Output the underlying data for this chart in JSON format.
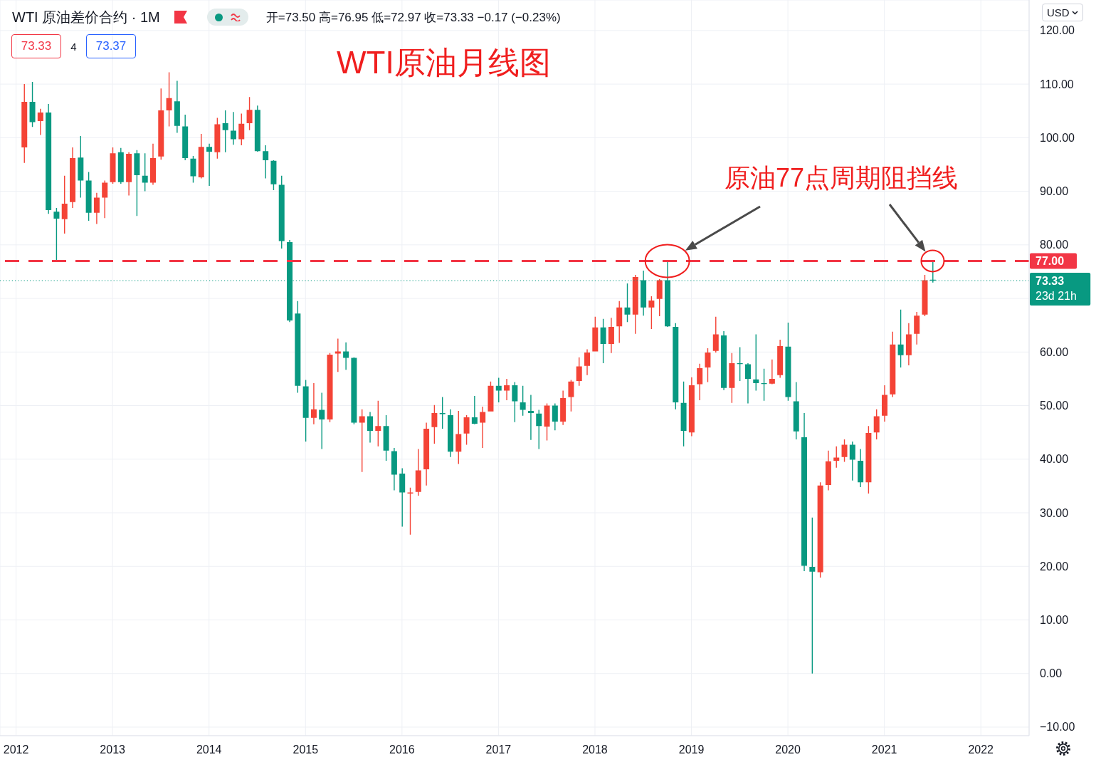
{
  "chart_data": {
    "type": "candlestick",
    "title": "WTI原油月线图",
    "subtitle": "WTI 原油差价合约 · 1M",
    "x": [
      "2012-02",
      "2012-03",
      "2012-04",
      "2012-05",
      "2012-06",
      "2012-07",
      "2012-08",
      "2012-09",
      "2012-10",
      "2012-11",
      "2012-12",
      "2013-01",
      "2013-02",
      "2013-03",
      "2013-04",
      "2013-05",
      "2013-06",
      "2013-07",
      "2013-08",
      "2013-09",
      "2013-10",
      "2013-11",
      "2013-12",
      "2014-01",
      "2014-02",
      "2014-03",
      "2014-04",
      "2014-05",
      "2014-06",
      "2014-07",
      "2014-08",
      "2014-09",
      "2014-10",
      "2014-11",
      "2014-12",
      "2015-01",
      "2015-02",
      "2015-03",
      "2015-04",
      "2015-05",
      "2015-06",
      "2015-07",
      "2015-08",
      "2015-09",
      "2015-10",
      "2015-11",
      "2015-12",
      "2016-01",
      "2016-02",
      "2016-03",
      "2016-04",
      "2016-05",
      "2016-06",
      "2016-07",
      "2016-08",
      "2016-09",
      "2016-10",
      "2016-11",
      "2016-12",
      "2017-01",
      "2017-02",
      "2017-03",
      "2017-04",
      "2017-05",
      "2017-06",
      "2017-07",
      "2017-08",
      "2017-09",
      "2017-10",
      "2017-11",
      "2017-12",
      "2018-01",
      "2018-02",
      "2018-03",
      "2018-04",
      "2018-05",
      "2018-06",
      "2018-07",
      "2018-08",
      "2018-09",
      "2018-10",
      "2018-11",
      "2018-12",
      "2019-01",
      "2019-02",
      "2019-03",
      "2019-04",
      "2019-05",
      "2019-06",
      "2019-07",
      "2019-08",
      "2019-09",
      "2019-10",
      "2019-11",
      "2019-12",
      "2020-01",
      "2020-02",
      "2020-03",
      "2020-04",
      "2020-05",
      "2020-06",
      "2020-07",
      "2020-08",
      "2020-09",
      "2020-10",
      "2020-11",
      "2020-12",
      "2021-01",
      "2021-02",
      "2021-03",
      "2021-04",
      "2021-05",
      "2021-06",
      "2021-07"
    ],
    "ohlc": [
      [
        98.2,
        110.0,
        95.3,
        106.7
      ],
      [
        106.7,
        110.4,
        102.0,
        102.9
      ],
      [
        103.1,
        105.4,
        100.5,
        104.7
      ],
      [
        104.7,
        106.3,
        85.8,
        86.5
      ],
      [
        86.2,
        86.9,
        77.1,
        84.9
      ],
      [
        84.8,
        92.9,
        82.1,
        87.7
      ],
      [
        88.0,
        98.2,
        86.9,
        96.2
      ],
      [
        96.3,
        100.3,
        88.8,
        92.0
      ],
      [
        92.0,
        93.6,
        84.5,
        86.0
      ],
      [
        86.0,
        89.7,
        83.9,
        88.8
      ],
      [
        88.8,
        92.0,
        85.0,
        91.6
      ],
      [
        91.7,
        98.2,
        91.4,
        97.1
      ],
      [
        97.3,
        98.1,
        91.4,
        91.7
      ],
      [
        91.7,
        97.3,
        89.2,
        97.0
      ],
      [
        97.1,
        97.7,
        85.4,
        93.0
      ],
      [
        92.9,
        97.1,
        90.0,
        91.6
      ],
      [
        91.6,
        98.9,
        91.2,
        96.2
      ],
      [
        96.5,
        109.2,
        95.9,
        105.1
      ],
      [
        105.1,
        112.2,
        102.1,
        107.4
      ],
      [
        106.8,
        110.6,
        100.9,
        102.2
      ],
      [
        102.1,
        104.3,
        95.8,
        96.2
      ],
      [
        96.1,
        96.6,
        91.6,
        92.8
      ],
      [
        92.6,
        100.7,
        92.4,
        98.3
      ],
      [
        98.3,
        98.9,
        91.0,
        97.4
      ],
      [
        97.3,
        103.7,
        96.1,
        102.5
      ],
      [
        102.7,
        105.1,
        97.3,
        101.4
      ],
      [
        101.3,
        104.8,
        98.7,
        99.7
      ],
      [
        99.7,
        104.5,
        98.6,
        102.6
      ],
      [
        102.7,
        107.6,
        101.4,
        105.2
      ],
      [
        105.2,
        106.0,
        97.4,
        97.5
      ],
      [
        97.5,
        98.6,
        92.4,
        95.8
      ],
      [
        95.7,
        95.8,
        90.2,
        91.3
      ],
      [
        91.2,
        92.9,
        79.3,
        80.7
      ],
      [
        80.5,
        80.9,
        65.6,
        65.9
      ],
      [
        67.2,
        69.5,
        52.4,
        53.7
      ],
      [
        53.6,
        54.8,
        43.3,
        47.7
      ],
      [
        47.7,
        54.2,
        46.5,
        49.3
      ],
      [
        49.2,
        52.4,
        41.9,
        47.4
      ],
      [
        47.4,
        59.8,
        46.9,
        59.5
      ],
      [
        59.7,
        62.5,
        56.3,
        60.1
      ],
      [
        60.1,
        61.8,
        56.7,
        58.9
      ],
      [
        58.9,
        59.0,
        46.5,
        46.8
      ],
      [
        46.8,
        49.3,
        37.6,
        48.0
      ],
      [
        48.0,
        48.8,
        43.1,
        45.3
      ],
      [
        45.3,
        50.9,
        42.4,
        46.2
      ],
      [
        46.2,
        48.2,
        39.7,
        41.6
      ],
      [
        41.5,
        42.1,
        34.2,
        37.1
      ],
      [
        37.3,
        38.3,
        27.4,
        33.8
      ],
      [
        33.6,
        34.7,
        25.9,
        33.8
      ],
      [
        33.9,
        41.9,
        33.2,
        37.9
      ],
      [
        38.1,
        46.8,
        35.1,
        45.7
      ],
      [
        46.0,
        50.1,
        42.9,
        48.6
      ],
      [
        48.6,
        51.6,
        45.7,
        48.4
      ],
      [
        48.2,
        49.3,
        40.4,
        41.4
      ],
      [
        41.4,
        49.0,
        39.1,
        44.7
      ],
      [
        44.8,
        48.2,
        42.7,
        47.8
      ],
      [
        47.8,
        51.8,
        46.5,
        46.6
      ],
      [
        46.8,
        49.8,
        42.1,
        48.8
      ],
      [
        48.9,
        54.5,
        48.9,
        53.7
      ],
      [
        53.7,
        55.2,
        50.6,
        52.8
      ],
      [
        52.8,
        55.0,
        51.0,
        53.8
      ],
      [
        53.8,
        54.4,
        46.9,
        50.8
      ],
      [
        50.6,
        53.7,
        48.1,
        49.2
      ],
      [
        49.0,
        52.0,
        43.6,
        48.6
      ],
      [
        48.5,
        49.2,
        41.9,
        46.2
      ],
      [
        46.1,
        50.4,
        43.5,
        50.0
      ],
      [
        50.0,
        50.4,
        45.4,
        47.0
      ],
      [
        47.0,
        52.8,
        46.4,
        51.4
      ],
      [
        51.6,
        54.8,
        48.9,
        54.5
      ],
      [
        54.6,
        59.0,
        53.7,
        57.3
      ],
      [
        57.4,
        60.5,
        55.7,
        59.9
      ],
      [
        60.1,
        66.6,
        60.1,
        64.6
      ],
      [
        64.6,
        66.2,
        57.9,
        61.5
      ],
      [
        61.5,
        66.4,
        59.8,
        64.7
      ],
      [
        64.8,
        69.5,
        61.7,
        68.3
      ],
      [
        68.3,
        72.8,
        65.6,
        67.0
      ],
      [
        67.0,
        74.4,
        63.4,
        74.0
      ],
      [
        73.4,
        75.2,
        66.8,
        68.3
      ],
      [
        68.3,
        70.4,
        64.3,
        69.6
      ],
      [
        69.9,
        73.6,
        66.7,
        73.4
      ],
      [
        73.4,
        76.9,
        64.7,
        64.8
      ],
      [
        64.7,
        65.4,
        49.3,
        50.6
      ],
      [
        50.5,
        54.5,
        42.4,
        45.3
      ],
      [
        45.0,
        55.3,
        44.3,
        53.8
      ],
      [
        54.0,
        57.8,
        51.0,
        57.0
      ],
      [
        57.1,
        60.7,
        54.4,
        59.9
      ],
      [
        60.2,
        66.6,
        59.9,
        63.3
      ],
      [
        63.1,
        63.9,
        52.9,
        53.3
      ],
      [
        53.3,
        59.8,
        50.5,
        57.9
      ],
      [
        57.9,
        60.9,
        54.6,
        57.8
      ],
      [
        57.7,
        57.9,
        50.4,
        55.0
      ],
      [
        54.9,
        63.3,
        52.8,
        54.2
      ],
      [
        54.2,
        56.9,
        50.9,
        54.1
      ],
      [
        54.1,
        58.6,
        54.0,
        55.0
      ],
      [
        55.7,
        62.3,
        55.2,
        61.1
      ],
      [
        61.0,
        65.5,
        50.9,
        51.6
      ],
      [
        50.8,
        54.4,
        43.7,
        45.2
      ],
      [
        44.1,
        48.6,
        19.1,
        20.1
      ],
      [
        19.9,
        29.1,
        0,
        19.0
      ],
      [
        18.9,
        35.7,
        17.9,
        35.1
      ],
      [
        35.2,
        41.6,
        34.2,
        39.6
      ],
      [
        39.7,
        42.4,
        38.4,
        40.3
      ],
      [
        40.4,
        43.7,
        39.5,
        42.7
      ],
      [
        42.7,
        43.3,
        36.0,
        39.9
      ],
      [
        39.7,
        41.9,
        34.8,
        35.7
      ],
      [
        35.7,
        46.2,
        33.6,
        44.9
      ],
      [
        45.0,
        49.3,
        43.7,
        48.0
      ],
      [
        48.1,
        53.8,
        47.0,
        52.0
      ],
      [
        52.1,
        63.8,
        51.6,
        61.4
      ],
      [
        61.4,
        67.9,
        57.1,
        59.4
      ],
      [
        59.4,
        65.4,
        57.5,
        63.3
      ],
      [
        63.4,
        67.5,
        61.4,
        66.8
      ],
      [
        67.0,
        74.4,
        66.7,
        73.4
      ],
      [
        73.5,
        76.95,
        72.97,
        73.33
      ]
    ],
    "colors": [
      "#f44336",
      "#089981",
      "#f44336",
      "#089981",
      "#089981",
      "#f44336",
      "#f44336",
      "#089981",
      "#089981",
      "#f44336",
      "#f44336",
      "#f44336",
      "#089981",
      "#f44336",
      "#089981",
      "#089981",
      "#f44336",
      "#f44336",
      "#f44336",
      "#089981",
      "#089981",
      "#089981",
      "#f44336",
      "#089981",
      "#f44336",
      "#089981",
      "#089981",
      "#f44336",
      "#f44336",
      "#089981",
      "#089981",
      "#089981",
      "#089981",
      "#089981",
      "#089981",
      "#089981",
      "#f44336",
      "#089981",
      "#f44336",
      "#f44336",
      "#089981",
      "#089981",
      "#f44336",
      "#089981",
      "#f44336",
      "#089981",
      "#089981",
      "#089981",
      "#f44336",
      "#f44336",
      "#f44336",
      "#f44336",
      "#089981",
      "#089981",
      "#f44336",
      "#f44336",
      "#089981",
      "#f44336",
      "#f44336",
      "#089981",
      "#f44336",
      "#089981",
      "#089981",
      "#089981",
      "#089981",
      "#f44336",
      "#089981",
      "#f44336",
      "#f44336",
      "#f44336",
      "#f44336",
      "#f44336",
      "#089981",
      "#f44336",
      "#f44336",
      "#089981",
      "#f44336",
      "#089981",
      "#f44336",
      "#f44336",
      "#089981",
      "#089981",
      "#089981",
      "#f44336",
      "#f44336",
      "#f44336",
      "#f44336",
      "#089981",
      "#f44336",
      "#089981",
      "#089981",
      "#089981",
      "#089981",
      "#f44336",
      "#f44336",
      "#089981",
      "#089981",
      "#089981",
      "#089981",
      "#f44336",
      "#f44336",
      "#f44336",
      "#f44336",
      "#089981",
      "#089981",
      "#f44336",
      "#f44336",
      "#f44336",
      "#f44336",
      "#089981",
      "#f44336",
      "#f44336",
      "#f44336",
      "#089981"
    ],
    "xlim": [
      "2011-11",
      "2022-07"
    ],
    "xticks": [
      "2012",
      "2013",
      "2014",
      "2015",
      "2016",
      "2017",
      "2018",
      "2019",
      "2020",
      "2021",
      "2022"
    ],
    "ylim": [
      -11.6,
      125.7
    ],
    "yticks": [
      {
        "value": 120,
        "label": "120.00"
      },
      {
        "value": 110,
        "label": "110.00"
      },
      {
        "value": 100,
        "label": "100.00"
      },
      {
        "value": 90,
        "label": "90.00"
      },
      {
        "value": 80,
        "label": "80.00"
      },
      {
        "value": 70,
        "label": null
      },
      {
        "value": 60,
        "label": "60.00"
      },
      {
        "value": 50,
        "label": "50.00"
      },
      {
        "value": 40,
        "label": "40.00"
      },
      {
        "value": 30,
        "label": "30.00"
      },
      {
        "value": 20,
        "label": "20.00"
      },
      {
        "value": 10,
        "label": "10.00"
      },
      {
        "value": 0,
        "label": "0.00"
      },
      {
        "value": -10,
        "label": "−10.00"
      }
    ],
    "grid": true,
    "ref_lines": [
      {
        "axis": "y",
        "value": 77,
        "label": "77.00",
        "color": "#f23645",
        "line_style": "dashed"
      },
      {
        "axis": "y",
        "value": 73.33,
        "label": "73.33\n23d 21h",
        "color": "#089981",
        "line_style": "dotted"
      }
    ],
    "annotations": [
      "原油77点周期阻挡线",
      "开=73.50 高=76.95 低=72.97 收=73.33 −0.17 (−0.23%)",
      "73.33",
      "4",
      "73.37",
      "USD"
    ]
  }
}
